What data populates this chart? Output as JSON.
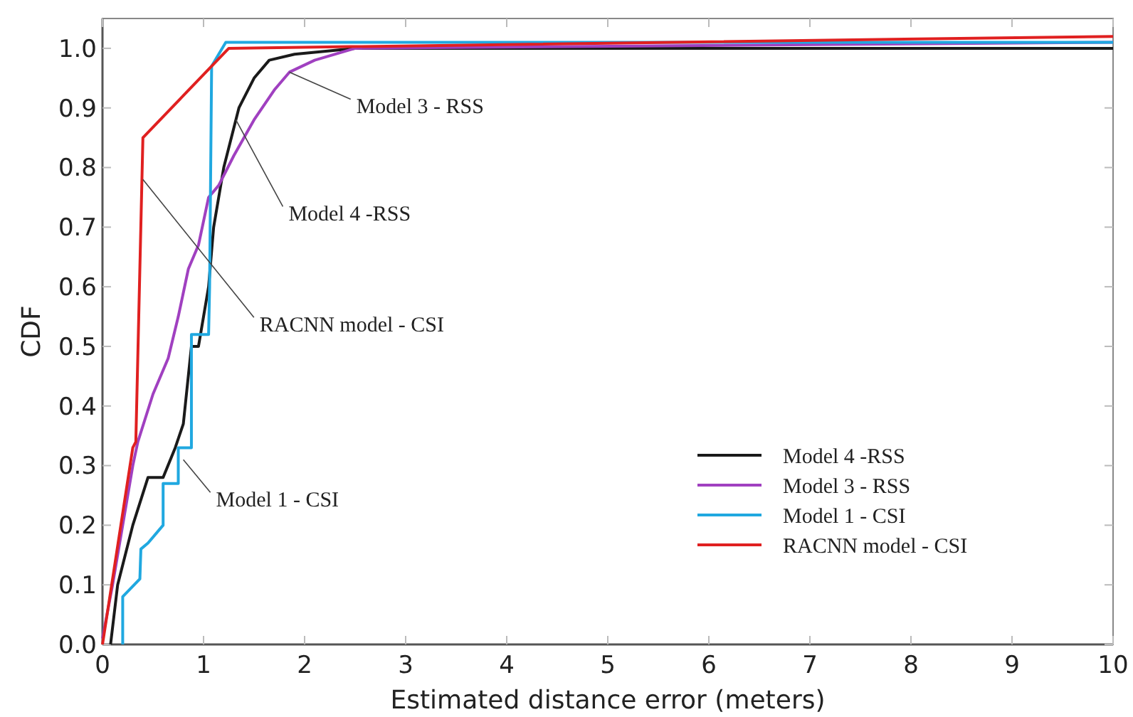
{
  "chart_data": {
    "type": "line",
    "xlabel": "Estimated distance error (meters)",
    "ylabel": "CDF",
    "xlim": [
      0,
      10
    ],
    "ylim": [
      0,
      1.05
    ],
    "xticks": [
      0,
      1,
      2,
      3,
      4,
      5,
      6,
      7,
      8,
      9,
      10
    ],
    "yticks": [
      {
        "value": 0,
        "label": "0.0"
      },
      0.1,
      0.2,
      0.3,
      0.4,
      0.5,
      0.6,
      0.7,
      0.8,
      0.9,
      {
        "value": 1,
        "label": "1.0"
      }
    ],
    "grid": false,
    "legend": "right",
    "marker": "none",
    "line_style": "solid",
    "series": [
      {
        "name": "Model 4 -RSS",
        "color": "#1a1a1a",
        "x": [
          0.08,
          0.15,
          0.3,
          0.45,
          0.6,
          0.72,
          0.8,
          0.88,
          0.95,
          1.0,
          1.05,
          1.1,
          1.2,
          1.35,
          1.5,
          1.65,
          1.9,
          2.5,
          10
        ],
        "values": [
          0,
          0.1,
          0.2,
          0.28,
          0.28,
          0.33,
          0.37,
          0.5,
          0.5,
          0.55,
          0.6,
          0.7,
          0.8,
          0.9,
          0.95,
          0.98,
          0.99,
          1.0,
          1.0
        ]
      },
      {
        "name": "Model 3 - RSS",
        "color": "#a040c0",
        "x": [
          0,
          0.1,
          0.2,
          0.3,
          0.35,
          0.5,
          0.65,
          0.75,
          0.85,
          0.95,
          1.05,
          1.15,
          1.3,
          1.5,
          1.7,
          1.85,
          2.1,
          2.5,
          10
        ],
        "values": [
          0.01,
          0.1,
          0.2,
          0.3,
          0.34,
          0.42,
          0.48,
          0.55,
          0.63,
          0.67,
          0.75,
          0.77,
          0.82,
          0.88,
          0.93,
          0.96,
          0.98,
          1.0,
          1.01
        ]
      },
      {
        "name": "Model 1 - CSI",
        "color": "#20a8e0",
        "x": [
          0.2,
          0.2,
          0.37,
          0.38,
          0.45,
          0.6,
          0.6,
          0.75,
          0.75,
          0.88,
          0.88,
          1.05,
          1.06,
          1.08,
          1.22,
          10
        ],
        "values": [
          0,
          0.08,
          0.11,
          0.16,
          0.17,
          0.2,
          0.27,
          0.27,
          0.33,
          0.33,
          0.52,
          0.52,
          0.6,
          0.97,
          1.01,
          1.01
        ]
      },
      {
        "name": "RACNN model - CSI",
        "color": "#e02020",
        "x": [
          0,
          0.3,
          0.33,
          0.4,
          1.25,
          10
        ],
        "values": [
          0,
          0.33,
          0.34,
          0.85,
          1.0,
          1.02
        ]
      }
    ],
    "annotations": [
      {
        "text": "Model 3 - RSS",
        "x": 1.85,
        "y": 0.96
      },
      {
        "text": "Model 4 -RSS",
        "x": 1.32,
        "y": 0.88
      },
      {
        "text": "RACNN model - CSI",
        "x": 0.4,
        "y": 0.78
      },
      {
        "text": "Model 1 - CSI",
        "x": 0.8,
        "y": 0.31
      }
    ]
  }
}
